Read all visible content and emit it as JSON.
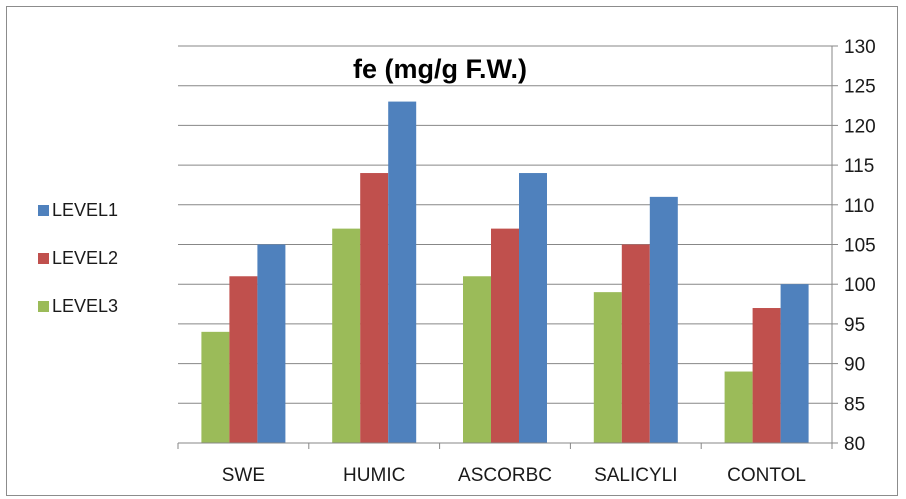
{
  "chart_data": {
    "type": "bar",
    "title": "fe (mg/g F.W.)",
    "xlabel": "",
    "ylabel": "",
    "categories": [
      "SWE",
      "HUMIC",
      "ASCORBC",
      "SALICYLI",
      "CONTOL"
    ],
    "series": [
      {
        "name": "LEVEL3",
        "color": "#9bbb59",
        "values": [
          94,
          107,
          101,
          99,
          89
        ]
      },
      {
        "name": "LEVEL2",
        "color": "#c0504d",
        "values": [
          101,
          114,
          107,
          105,
          97
        ]
      },
      {
        "name": "LEVEL1",
        "color": "#4f81bd",
        "values": [
          105,
          123,
          114,
          111,
          100
        ]
      }
    ],
    "legend_order": [
      "LEVEL1",
      "LEVEL2",
      "LEVEL3"
    ],
    "ylim": [
      80,
      130
    ],
    "yticks": [
      80,
      85,
      90,
      95,
      100,
      105,
      110,
      115,
      120,
      125,
      130
    ],
    "y_axis_side": "right",
    "grid": true,
    "legend_position": "left"
  }
}
